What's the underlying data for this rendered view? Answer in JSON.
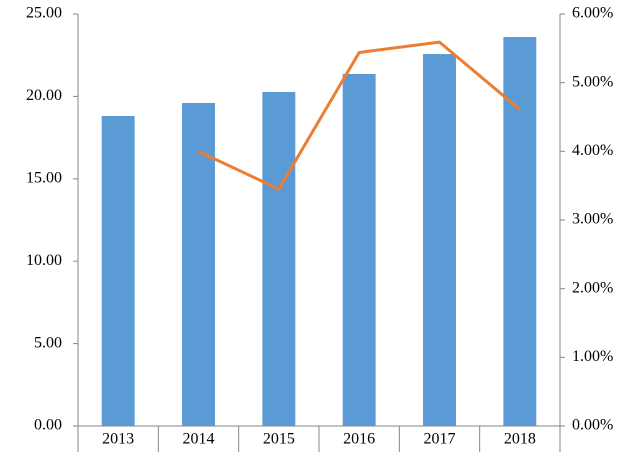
{
  "chart_data": {
    "type": "bar",
    "categories": [
      "2013",
      "2014",
      "2015",
      "2016",
      "2017",
      "2018"
    ],
    "series": [
      {
        "type": "bar",
        "color": "#5b9bd5",
        "values": [
          18.81,
          19.6,
          20.27,
          21.36,
          22.57,
          23.6
        ]
      },
      {
        "type": "line",
        "axis": "y2",
        "color": "#ed7d31",
        "values": [
          null,
          4.0,
          3.45,
          5.44,
          5.59,
          4.61
        ]
      }
    ],
    "ylim": [
      0,
      25
    ],
    "yticks": [
      {
        "value": 0,
        "label": "0.00"
      },
      {
        "value": 5,
        "label": "5.00"
      },
      {
        "value": 10,
        "label": "10.00"
      },
      {
        "value": 15,
        "label": "15.00"
      },
      {
        "value": 20,
        "label": "20.00"
      },
      {
        "value": 25,
        "label": "25.00"
      }
    ],
    "y2lim": [
      0,
      6
    ],
    "y2ticks": [
      {
        "value": 0,
        "label": "0.00%"
      },
      {
        "value": 1,
        "label": "1.00%"
      },
      {
        "value": 2,
        "label": "2.00%"
      },
      {
        "value": 3,
        "label": "3.00%"
      },
      {
        "value": 4,
        "label": "4.00%"
      },
      {
        "value": 5,
        "label": "5.00%"
      },
      {
        "value": 6,
        "label": "6.00%"
      }
    ],
    "grid": false
  }
}
